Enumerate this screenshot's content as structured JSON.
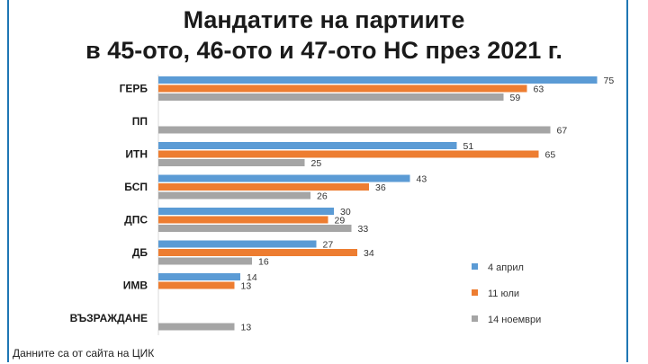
{
  "chart_data": {
    "type": "bar",
    "orientation": "horizontal",
    "title_line1": "Мандатите на партиите",
    "title_line2": "в 45-ото, 46-ото и 47-ото НС през 2021 г.",
    "categories": [
      "ГЕРБ",
      "ПП",
      "ИТН",
      "БСП",
      "ДПС",
      "ДБ",
      "ИМВ",
      "ВЪЗРАЖДАНЕ"
    ],
    "series": [
      {
        "name": "4 април",
        "color": "#5b9bd5",
        "values": [
          75,
          null,
          51,
          43,
          30,
          27,
          14,
          null
        ]
      },
      {
        "name": "11 юли",
        "color": "#ed7d31",
        "values": [
          63,
          null,
          65,
          36,
          29,
          34,
          13,
          null
        ]
      },
      {
        "name": "14 ноември",
        "color": "#a5a5a5",
        "values": [
          59,
          67,
          25,
          26,
          33,
          16,
          null,
          13
        ]
      }
    ],
    "xlim": [
      0,
      80
    ],
    "legend_position": "bottom-right",
    "grid": false
  },
  "source_note": "Данните са от сайта на ЦИК"
}
